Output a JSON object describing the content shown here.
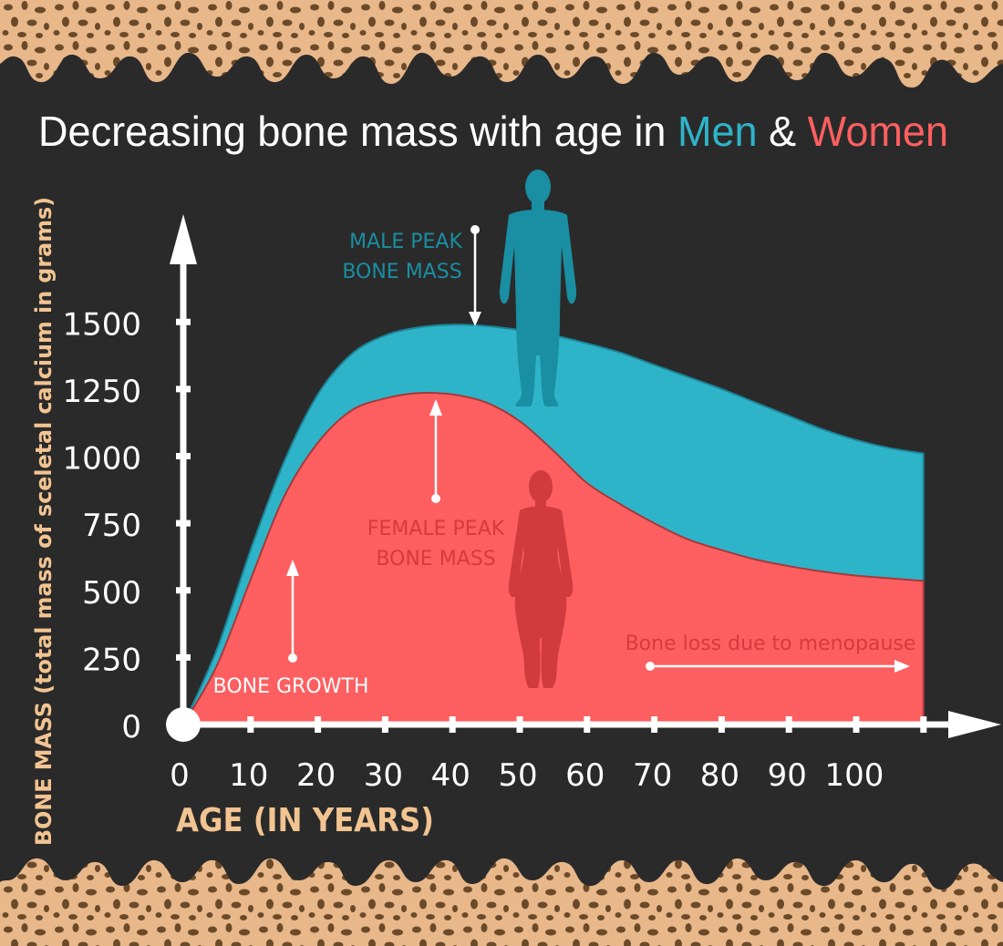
{
  "title": {
    "prefix": "Decreasing bone mass with age in ",
    "men": "Men",
    "amp": " & ",
    "women": "Women"
  },
  "colors": {
    "background": "#2a2a2a",
    "men": "#2eb4c8",
    "women": "#fd5f60",
    "male_label": "#1a8ea2",
    "female_label": "#d63a3c",
    "axis": "#ffffff",
    "axis_label": "#f2c491",
    "bone": "#e8b88a",
    "bone_dark": "#6b4a2a"
  },
  "annotations": {
    "male_peak": [
      "MALE PEAK",
      "BONE MASS"
    ],
    "female_peak": [
      "FEMALE PEAK",
      "BONE MASS"
    ],
    "bone_growth": "BONE GROWTH",
    "menopause": "Bone loss due to menopause"
  },
  "chart_data": {
    "type": "area",
    "xlabel": "AGE (IN YEARS)",
    "ylabel": "BONE MASS (total mass of sceletal calcium in grams)",
    "xlim": [
      0,
      110
    ],
    "ylim": [
      0,
      1500
    ],
    "x_ticks": [
      0,
      10,
      20,
      30,
      40,
      50,
      60,
      70,
      80,
      90,
      100
    ],
    "y_ticks": [
      0,
      250,
      500,
      750,
      1000,
      1250,
      1500
    ],
    "x": [
      0,
      5,
      10,
      15,
      20,
      25,
      30,
      35,
      40,
      45,
      50,
      55,
      60,
      65,
      70,
      75,
      80,
      85,
      90,
      95,
      100,
      105,
      110
    ],
    "series": [
      {
        "name": "Men",
        "values": [
          0,
          280,
          650,
          980,
          1230,
          1380,
          1450,
          1480,
          1490,
          1485,
          1470,
          1450,
          1420,
          1385,
          1340,
          1295,
          1250,
          1200,
          1150,
          1100,
          1060,
          1030,
          1010
        ]
      },
      {
        "name": "Women",
        "values": [
          0,
          220,
          540,
          850,
          1050,
          1170,
          1215,
          1235,
          1230,
          1200,
          1130,
          1020,
          900,
          820,
          750,
          690,
          650,
          615,
          590,
          570,
          555,
          545,
          535
        ]
      }
    ]
  }
}
